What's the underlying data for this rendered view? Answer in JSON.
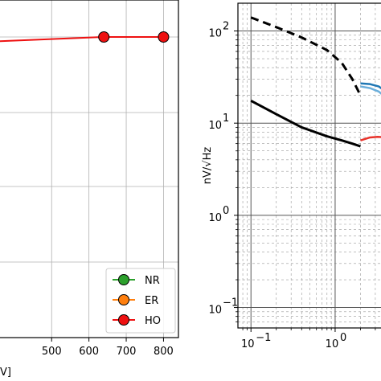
{
  "chart_data": [
    {
      "type": "line",
      "title": "",
      "xlabel": "V]",
      "ylabel": "",
      "xlim": [
        340,
        840
      ],
      "x_ticks": [
        {
          "value": 500,
          "label": "500"
        },
        {
          "value": 600,
          "label": "600"
        },
        {
          "value": 700,
          "label": "700"
        },
        {
          "value": 800,
          "label": "800"
        }
      ],
      "grid": true,
      "legend_position": "bottom-right",
      "series": [
        {
          "name": "NR",
          "color": "#2ca02c",
          "x": [],
          "y": []
        },
        {
          "name": "ER",
          "color": "#ff7f0e",
          "x": [],
          "y": []
        },
        {
          "name": "HO",
          "color": "#ee1111",
          "x": [
            340,
            640,
            800
          ],
          "y": [
            0.985,
            1.0,
            1.0
          ]
        }
      ]
    },
    {
      "type": "line",
      "title": "",
      "xlabel": "",
      "ylabel": "nV/√Hz",
      "xscale": "log",
      "yscale": "log",
      "xlim": [
        0.07,
        4
      ],
      "ylim": [
        0.06,
        200
      ],
      "x_ticks": [
        {
          "value": 0.1,
          "label": "10",
          "exp": "−1"
        },
        {
          "value": 1,
          "label": "10",
          "exp": "0"
        }
      ],
      "y_ticks": [
        {
          "value": 0.1,
          "label": "10",
          "exp": "−1"
        },
        {
          "value": 1,
          "label": "10",
          "exp": "0"
        },
        {
          "value": 10,
          "label": "10",
          "exp": "1"
        },
        {
          "value": 100,
          "label": "10",
          "exp": "2"
        }
      ],
      "grid": true,
      "series": [
        {
          "color": "#000000",
          "style": "dashed",
          "x": [
            0.1,
            0.2,
            0.4,
            0.8,
            1.2,
            1.6,
            2.0
          ],
          "y": [
            140,
            110,
            85,
            62,
            45,
            30,
            20
          ]
        },
        {
          "color": "#000000",
          "style": "solid",
          "x": [
            0.1,
            0.2,
            0.4,
            0.8,
            1.2,
            1.6,
            2.0
          ],
          "y": [
            17.5,
            12.5,
            9.0,
            7.2,
            6.5,
            6.0,
            5.6
          ]
        },
        {
          "color": "#1f77b4",
          "style": "solid",
          "x": [
            2.0,
            2.6,
            3.3,
            4.0
          ],
          "y": [
            27,
            26.5,
            25,
            22
          ]
        },
        {
          "color": "#6aaedb",
          "style": "solid",
          "x": [
            2.0,
            2.6,
            3.3,
            4.0
          ],
          "y": [
            25,
            24,
            22,
            19
          ]
        },
        {
          "color": "#e8332b",
          "style": "solid",
          "x": [
            2.0,
            2.6,
            3.2,
            4.0
          ],
          "y": [
            6.5,
            7.0,
            7.1,
            7.0
          ]
        }
      ]
    }
  ]
}
